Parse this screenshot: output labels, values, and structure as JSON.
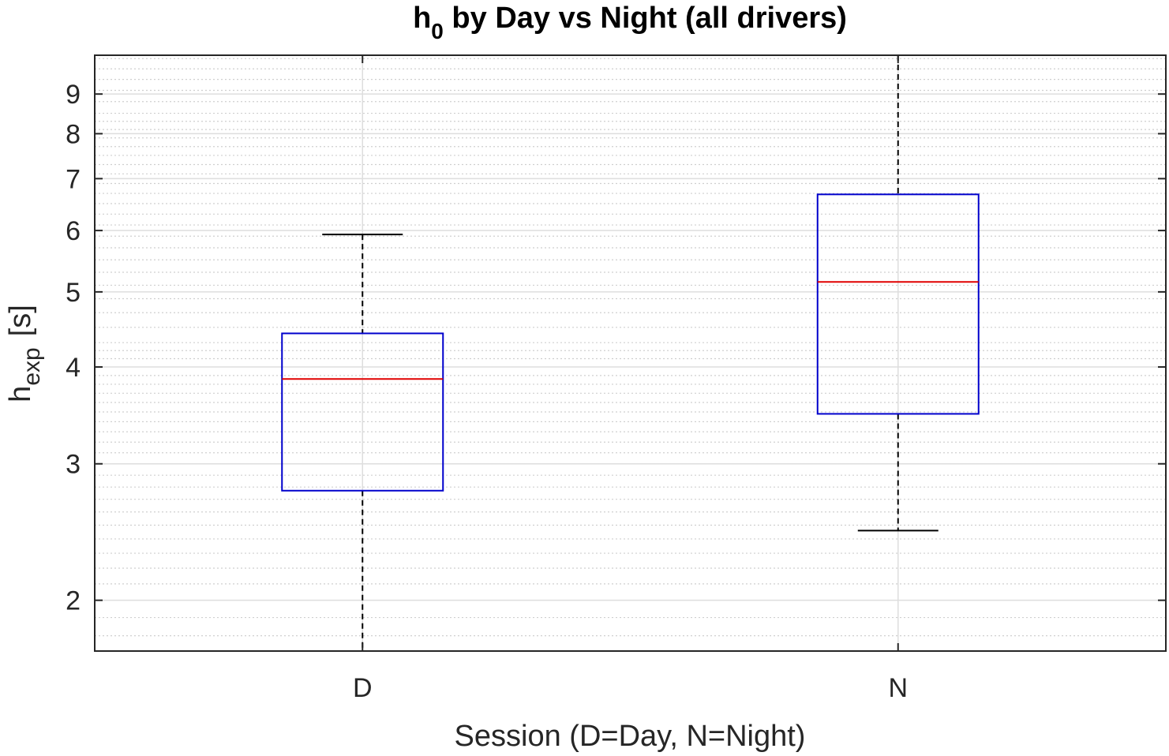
{
  "chart_data": {
    "type": "box",
    "title_main": "h",
    "title_sub": "0",
    "title_rest": " by Day vs Night (all drivers)",
    "xlabel": "Session (D=Day, N=Night)",
    "ylabel_main": "h",
    "ylabel_sub": "exp",
    "ylabel_unit": "[s]",
    "yscale": "log",
    "ylim": [
      1.72,
      10.1
    ],
    "ytick_values": [
      2,
      3,
      4,
      5,
      6,
      7,
      8,
      9
    ],
    "ytick_labels": [
      "2",
      "3",
      "4",
      "5",
      "6",
      "7",
      "8",
      "9"
    ],
    "grid": true,
    "minor_grid": true,
    "categories": [
      "D",
      "N"
    ],
    "boxes": [
      {
        "label": "D",
        "whisker_low": 1.72,
        "q1": 2.77,
        "median": 3.86,
        "q3": 4.42,
        "whisker_high": 5.93
      },
      {
        "label": "N",
        "whisker_low": 2.46,
        "q1": 3.48,
        "median": 5.15,
        "q3": 6.68,
        "whisker_high": 10.1
      }
    ],
    "colors": {
      "box": "#0000cc",
      "median": "#e00000",
      "whisker": "#000000",
      "axis": "#262626"
    }
  }
}
